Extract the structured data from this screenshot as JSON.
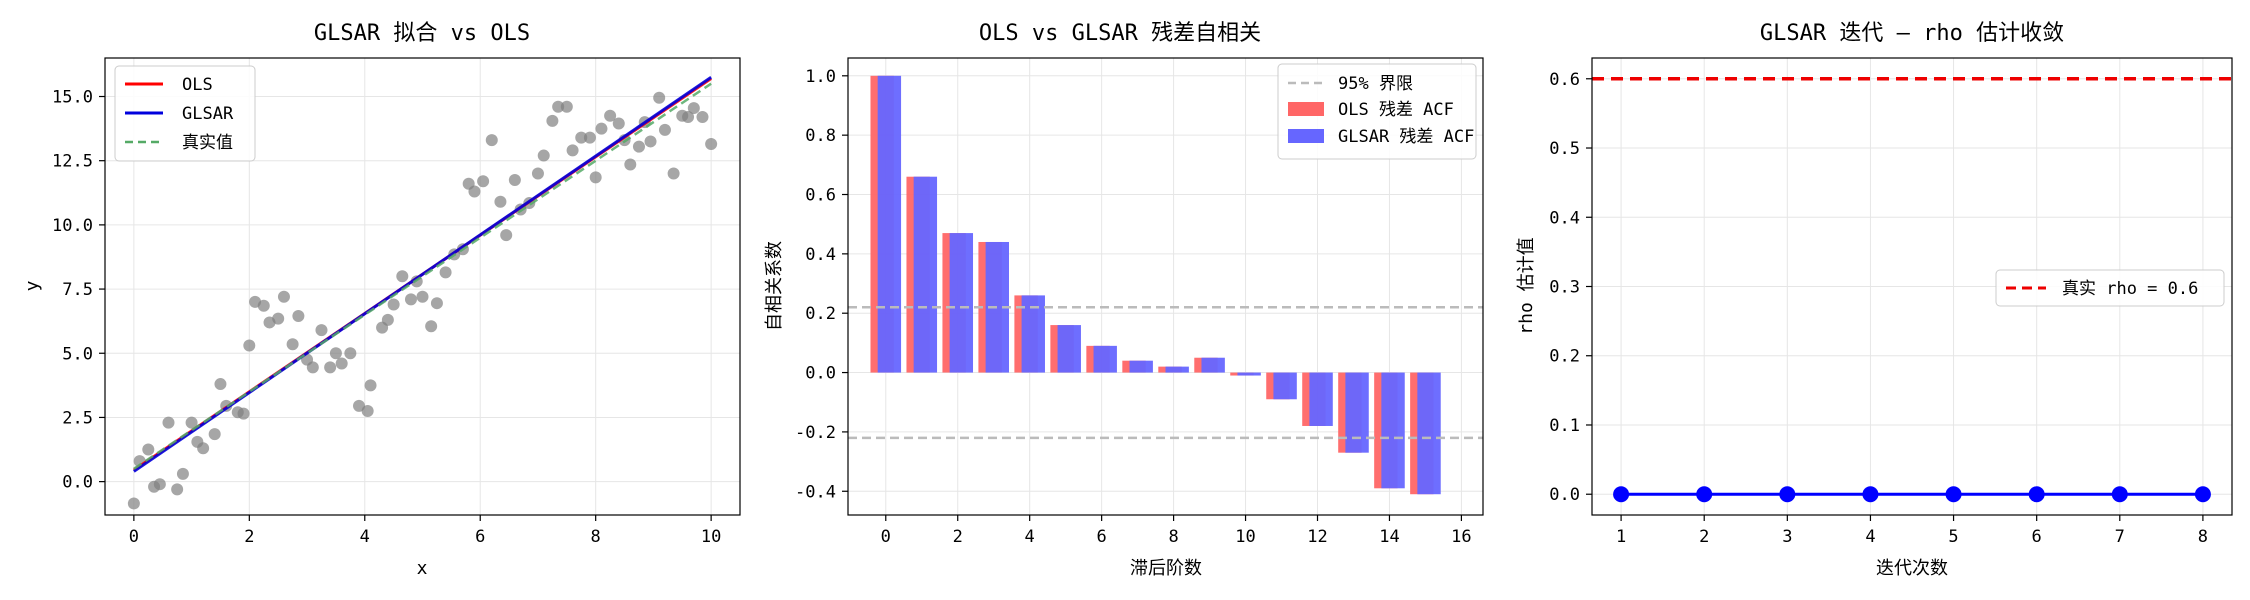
{
  "chart_data": [
    {
      "type": "scatter",
      "title": "GLSAR 拟合 vs OLS",
      "xlabel": "x",
      "ylabel": "y",
      "xlim": [
        -0.5,
        10.5
      ],
      "ylim": [
        -1.3,
        16.5
      ],
      "xticks": [
        0,
        2,
        4,
        6,
        8,
        10
      ],
      "xtick_labels": [
        "0",
        "2",
        "4",
        "6",
        "8",
        "10"
      ],
      "yticks": [
        0,
        2.5,
        5,
        7.5,
        10,
        12.5,
        15
      ],
      "ytick_labels": [
        "0.0",
        "2.5",
        "5.0",
        "7.5",
        "10.0",
        "12.5",
        "15.0"
      ],
      "grid": true,
      "legend_position": "top-left",
      "scatter": {
        "color": "#808080",
        "points": [
          [
            0.0,
            -0.85
          ],
          [
            0.1,
            0.8
          ],
          [
            0.25,
            1.25
          ],
          [
            0.35,
            -0.2
          ],
          [
            0.45,
            -0.1
          ],
          [
            0.6,
            2.3
          ],
          [
            0.75,
            -0.3
          ],
          [
            0.85,
            0.3
          ],
          [
            1.0,
            2.3
          ],
          [
            1.1,
            1.55
          ],
          [
            1.2,
            1.3
          ],
          [
            1.4,
            1.85
          ],
          [
            1.5,
            3.8
          ],
          [
            1.6,
            2.95
          ],
          [
            1.8,
            2.7
          ],
          [
            1.9,
            2.65
          ],
          [
            2.0,
            5.3
          ],
          [
            2.1,
            7.0
          ],
          [
            2.25,
            6.85
          ],
          [
            2.35,
            6.2
          ],
          [
            2.5,
            6.35
          ],
          [
            2.6,
            7.2
          ],
          [
            2.75,
            5.35
          ],
          [
            2.85,
            6.45
          ],
          [
            3.0,
            4.75
          ],
          [
            3.1,
            4.45
          ],
          [
            3.25,
            5.9
          ],
          [
            3.4,
            4.45
          ],
          [
            3.5,
            5.0
          ],
          [
            3.6,
            4.6
          ],
          [
            3.75,
            5.0
          ],
          [
            3.9,
            2.95
          ],
          [
            4.05,
            2.75
          ],
          [
            4.1,
            3.75
          ],
          [
            4.3,
            6.0
          ],
          [
            4.4,
            6.3
          ],
          [
            4.5,
            6.9
          ],
          [
            4.65,
            8.0
          ],
          [
            4.8,
            7.1
          ],
          [
            4.9,
            7.8
          ],
          [
            5.0,
            7.2
          ],
          [
            5.15,
            6.05
          ],
          [
            5.25,
            6.95
          ],
          [
            5.4,
            8.15
          ],
          [
            5.55,
            8.85
          ],
          [
            5.7,
            9.05
          ],
          [
            5.8,
            11.6
          ],
          [
            5.9,
            11.3
          ],
          [
            6.05,
            11.7
          ],
          [
            6.2,
            13.3
          ],
          [
            6.35,
            10.9
          ],
          [
            6.45,
            9.6
          ],
          [
            6.6,
            11.75
          ],
          [
            6.7,
            10.6
          ],
          [
            6.85,
            10.85
          ],
          [
            7.0,
            12.0
          ],
          [
            7.1,
            12.7
          ],
          [
            7.25,
            14.05
          ],
          [
            7.35,
            14.6
          ],
          [
            7.5,
            14.6
          ],
          [
            7.6,
            12.9
          ],
          [
            7.75,
            13.4
          ],
          [
            7.9,
            13.4
          ],
          [
            8.0,
            11.85
          ],
          [
            8.1,
            13.75
          ],
          [
            8.25,
            14.25
          ],
          [
            8.4,
            13.95
          ],
          [
            8.5,
            13.3
          ],
          [
            8.6,
            12.35
          ],
          [
            8.75,
            13.05
          ],
          [
            8.85,
            14.0
          ],
          [
            8.95,
            13.25
          ],
          [
            9.1,
            14.95
          ],
          [
            9.2,
            13.7
          ],
          [
            9.35,
            12.0
          ],
          [
            9.5,
            14.25
          ],
          [
            9.6,
            14.2
          ],
          [
            9.7,
            14.55
          ],
          [
            9.85,
            14.2
          ],
          [
            10.0,
            13.15
          ]
        ]
      },
      "series": [
        {
          "name": "OLS",
          "color": "#ff0000",
          "style": "solid",
          "x": [
            0,
            10
          ],
          "y": [
            0.45,
            15.7
          ]
        },
        {
          "name": "GLSAR",
          "color": "#0000dd",
          "style": "solid",
          "x": [
            0,
            10
          ],
          "y": [
            0.4,
            15.75
          ]
        },
        {
          "name": "真实值",
          "color": "#55aa66",
          "style": "dashed",
          "x": [
            0,
            10
          ],
          "y": [
            0.5,
            15.5
          ]
        }
      ]
    },
    {
      "type": "bar",
      "title": "OLS vs GLSAR 残差自相关",
      "xlabel": "滞后阶数",
      "ylabel": "自相关系数",
      "xlim": [
        -1.05,
        16.6
      ],
      "ylim": [
        -0.48,
        1.06
      ],
      "xticks": [
        0,
        2,
        4,
        6,
        8,
        10,
        12,
        14,
        16
      ],
      "xtick_labels": [
        "0",
        "2",
        "4",
        "6",
        "8",
        "10",
        "12",
        "14",
        "16"
      ],
      "yticks": [
        -0.4,
        -0.2,
        0,
        0.2,
        0.4,
        0.6,
        0.8,
        1.0
      ],
      "ytick_labels": [
        "-0.4",
        "-0.2",
        "0.0",
        "0.2",
        "0.4",
        "0.6",
        "0.8",
        "1.0"
      ],
      "grid": true,
      "legend_position": "top-right",
      "categories": [
        0,
        1,
        2,
        3,
        4,
        5,
        6,
        7,
        8,
        9,
        10,
        11,
        12,
        13,
        14,
        15
      ],
      "series": [
        {
          "name": "OLS 残差 ACF",
          "color": "#ff6666",
          "values": [
            1.0,
            0.66,
            0.47,
            0.44,
            0.26,
            0.16,
            0.09,
            0.04,
            0.02,
            0.05,
            -0.01,
            -0.09,
            -0.18,
            -0.27,
            -0.39,
            -0.41
          ]
        },
        {
          "name": "GLSAR 残差 ACF",
          "color": "#6666ff",
          "values": [
            1.0,
            0.66,
            0.47,
            0.44,
            0.26,
            0.16,
            0.09,
            0.04,
            0.02,
            0.05,
            -0.01,
            -0.09,
            -0.18,
            -0.27,
            -0.39,
            -0.41
          ]
        }
      ],
      "bound": {
        "name": "95% 界限",
        "color": "#bbbbbb",
        "value": 0.22
      }
    },
    {
      "type": "line",
      "title": "GLSAR 迭代 — rho 估计收敛",
      "xlabel": "迭代次数",
      "ylabel": "rho 估计值",
      "xlim": [
        0.65,
        8.35
      ],
      "ylim": [
        -0.03,
        0.63
      ],
      "xticks": [
        1,
        2,
        3,
        4,
        5,
        6,
        7,
        8
      ],
      "xtick_labels": [
        "1",
        "2",
        "3",
        "4",
        "5",
        "6",
        "7",
        "8"
      ],
      "yticks": [
        0,
        0.1,
        0.2,
        0.3,
        0.4,
        0.5,
        0.6
      ],
      "ytick_labels": [
        "0.0",
        "0.1",
        "0.2",
        "0.3",
        "0.4",
        "0.5",
        "0.6"
      ],
      "grid": true,
      "legend_position": "center-right",
      "series": [
        {
          "color": "#0000ff",
          "marker": "circle",
          "x": [
            1,
            2,
            3,
            4,
            5,
            6,
            7,
            8
          ],
          "y": [
            0,
            0,
            0,
            0,
            0,
            0,
            0,
            0
          ]
        }
      ],
      "reference": {
        "name": "真实 rho = 0.6",
        "color": "#ee0000",
        "value": 0.6
      }
    }
  ]
}
